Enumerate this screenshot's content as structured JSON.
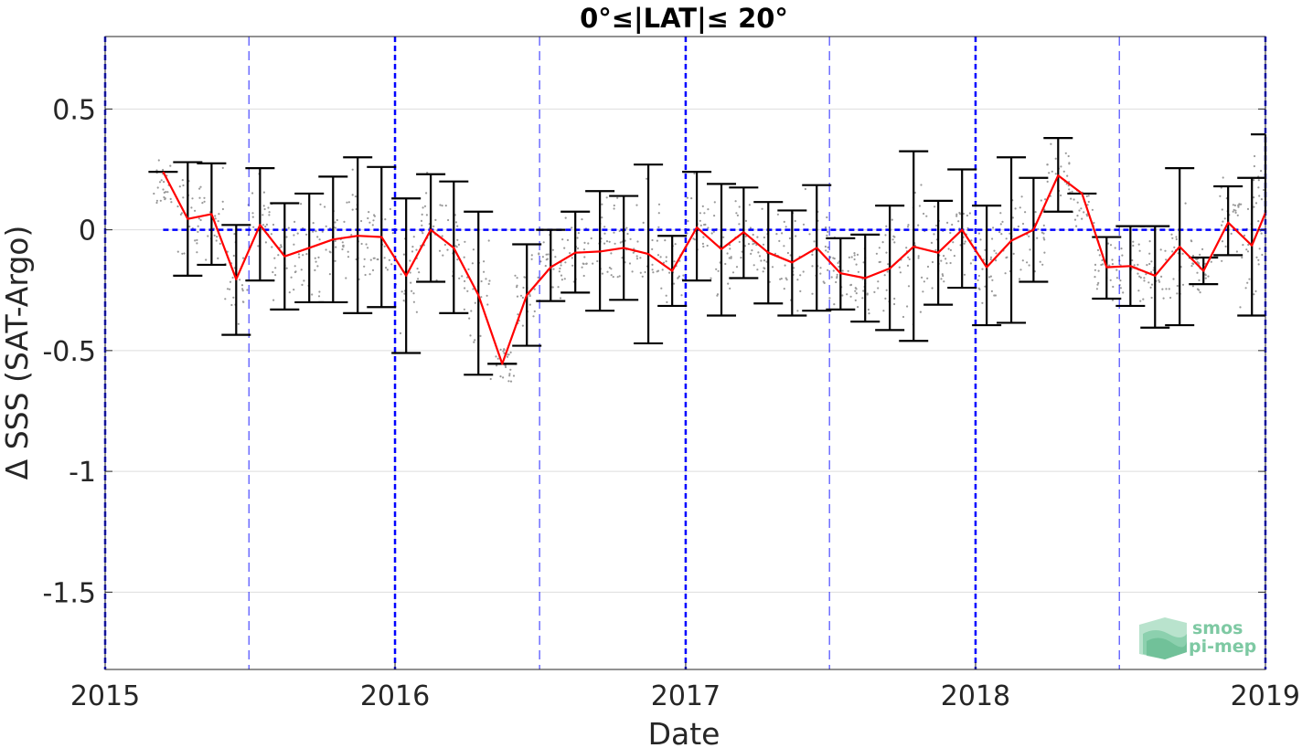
{
  "chart_data": {
    "type": "line",
    "title": "0°≤|LAT|≤ 20°",
    "xlabel": "Date",
    "ylabel": "Δ SSS (SAT-Argo)",
    "xlim": [
      "2015-01-01",
      "2019-01-01"
    ],
    "ylim": [
      -1.82,
      0.8
    ],
    "x_ticks": [
      "2015",
      "2016",
      "2017",
      "2018",
      "2019"
    ],
    "y_ticks": [
      0.5,
      0,
      -0.5,
      -1,
      -1.5
    ],
    "y_tick_labels": [
      "0.5",
      "0",
      "-0.5",
      "-1",
      "-1.5"
    ],
    "grid": true,
    "colors": {
      "mean_line": "#ff0000",
      "error_bars": "#000000",
      "reference_lines": "#0000ff",
      "scatter": "#999999",
      "logo": "#7ec9a3"
    },
    "zero_line": 0,
    "year_lines": [
      "2015-01-01",
      "2016-01-01",
      "2017-01-01",
      "2018-01-01",
      "2019-01-01"
    ],
    "half_year_lines": [
      "2015-07-01",
      "2016-07-01",
      "2017-07-01",
      "2018-07-01"
    ],
    "series": [
      {
        "type": "line_with_errorbars",
        "x": [
          "2015-03-15",
          "2015-04-15",
          "2015-05-15",
          "2015-06-15",
          "2015-07-15",
          "2015-08-15",
          "2015-09-15",
          "2015-10-15",
          "2015-11-15",
          "2015-12-15",
          "2016-01-15",
          "2016-02-15",
          "2016-03-15",
          "2016-04-15",
          "2016-05-15",
          "2016-06-15",
          "2016-07-15",
          "2016-08-15",
          "2016-09-15",
          "2016-10-15",
          "2016-11-15",
          "2016-12-15",
          "2017-01-15",
          "2017-02-15",
          "2017-03-15",
          "2017-04-15",
          "2017-05-15",
          "2017-06-15",
          "2017-07-15",
          "2017-08-15",
          "2017-09-15",
          "2017-10-15",
          "2017-11-15",
          "2017-12-15",
          "2018-01-15",
          "2018-02-15",
          "2018-03-15",
          "2018-04-15",
          "2018-05-15",
          "2018-06-15",
          "2018-07-15",
          "2018-08-15",
          "2018-09-15",
          "2018-10-15",
          "2018-11-15",
          "2018-12-15",
          "2019-01-01"
        ],
        "y": [
          0.24,
          0.045,
          0.065,
          -0.205,
          0.02,
          -0.11,
          -0.075,
          -0.04,
          -0.025,
          -0.03,
          -0.19,
          0.0,
          -0.075,
          -0.27,
          -0.555,
          -0.27,
          -0.155,
          -0.095,
          -0.09,
          -0.075,
          -0.1,
          -0.17,
          0.01,
          -0.08,
          -0.01,
          -0.095,
          -0.135,
          -0.075,
          -0.18,
          -0.2,
          -0.16,
          -0.07,
          -0.095,
          0.0,
          -0.155,
          -0.045,
          0.0,
          0.225,
          0.15,
          -0.155,
          -0.15,
          -0.19,
          -0.07,
          -0.17,
          0.03,
          -0.065,
          0.07
        ],
        "err_low": [
          null,
          -0.19,
          -0.145,
          -0.435,
          -0.21,
          -0.33,
          -0.3,
          -0.3,
          -0.345,
          -0.32,
          -0.51,
          -0.215,
          -0.345,
          -0.6,
          -0.555,
          -0.48,
          -0.295,
          -0.26,
          -0.335,
          -0.29,
          -0.47,
          -0.315,
          -0.21,
          -0.355,
          -0.2,
          -0.305,
          -0.355,
          -0.335,
          -0.33,
          -0.38,
          -0.415,
          -0.46,
          -0.31,
          -0.24,
          -0.395,
          -0.385,
          -0.215,
          0.075,
          null,
          -0.285,
          -0.315,
          -0.405,
          -0.395,
          -0.225,
          -0.105,
          -0.355,
          null
        ],
        "err_high": [
          0.24,
          0.28,
          0.275,
          0.02,
          0.255,
          0.11,
          0.15,
          0.22,
          0.3,
          0.26,
          0.13,
          0.23,
          0.2,
          0.075,
          -0.555,
          -0.06,
          0.0,
          0.075,
          0.16,
          0.14,
          0.27,
          -0.025,
          0.24,
          0.19,
          0.175,
          0.115,
          0.08,
          0.185,
          -0.035,
          -0.02,
          0.1,
          0.325,
          0.12,
          0.25,
          0.1,
          0.3,
          0.215,
          0.38,
          0.15,
          -0.03,
          0.015,
          0.015,
          0.255,
          -0.115,
          0.18,
          0.215,
          0.395
        ]
      }
    ]
  }
}
